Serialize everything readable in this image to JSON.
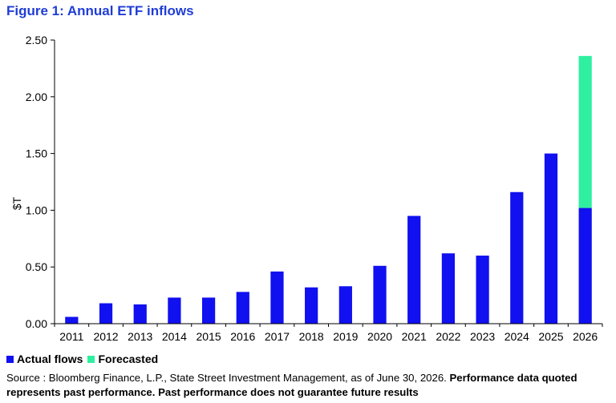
{
  "title": "Figure 1: Annual ETF inflows",
  "legend": {
    "actual_label": "Actual flows",
    "forecast_label": "Forecasted"
  },
  "source": {
    "plain": "Source : Bloomberg Finance, L.P., State Street Investment Management, as of June 30, 2026. ",
    "bold": "Performance data quoted represents past performance. Past performance does not guarantee future results"
  },
  "colors": {
    "actual": "#1010f0",
    "forecast": "#2ef0a0",
    "title": "#1f3dd6"
  },
  "chart_data": {
    "type": "bar",
    "stacked": true,
    "categories": [
      "2011",
      "2012",
      "2013",
      "2014",
      "2015",
      "2016",
      "2017",
      "2018",
      "2019",
      "2020",
      "2021",
      "2022",
      "2023",
      "2024",
      "2025",
      "2026"
    ],
    "series": [
      {
        "name": "Actual flows",
        "values": [
          0.06,
          0.18,
          0.17,
          0.23,
          0.23,
          0.28,
          0.46,
          0.32,
          0.33,
          0.51,
          0.95,
          0.62,
          0.6,
          1.16,
          1.5,
          1.02
        ]
      },
      {
        "name": "Forecasted",
        "values": [
          0,
          0,
          0,
          0,
          0,
          0,
          0,
          0,
          0,
          0,
          0,
          0,
          0,
          0,
          0,
          1.34
        ]
      }
    ],
    "ylabel": "$T",
    "ylim": [
      0,
      2.5
    ],
    "yticks": [
      "0.00",
      "0.50",
      "1.00",
      "1.50",
      "2.00",
      "2.50"
    ],
    "ytick_values": [
      0,
      0.5,
      1.0,
      1.5,
      2.0,
      2.5
    ],
    "grid": false,
    "legend_position": "bottom-left"
  }
}
